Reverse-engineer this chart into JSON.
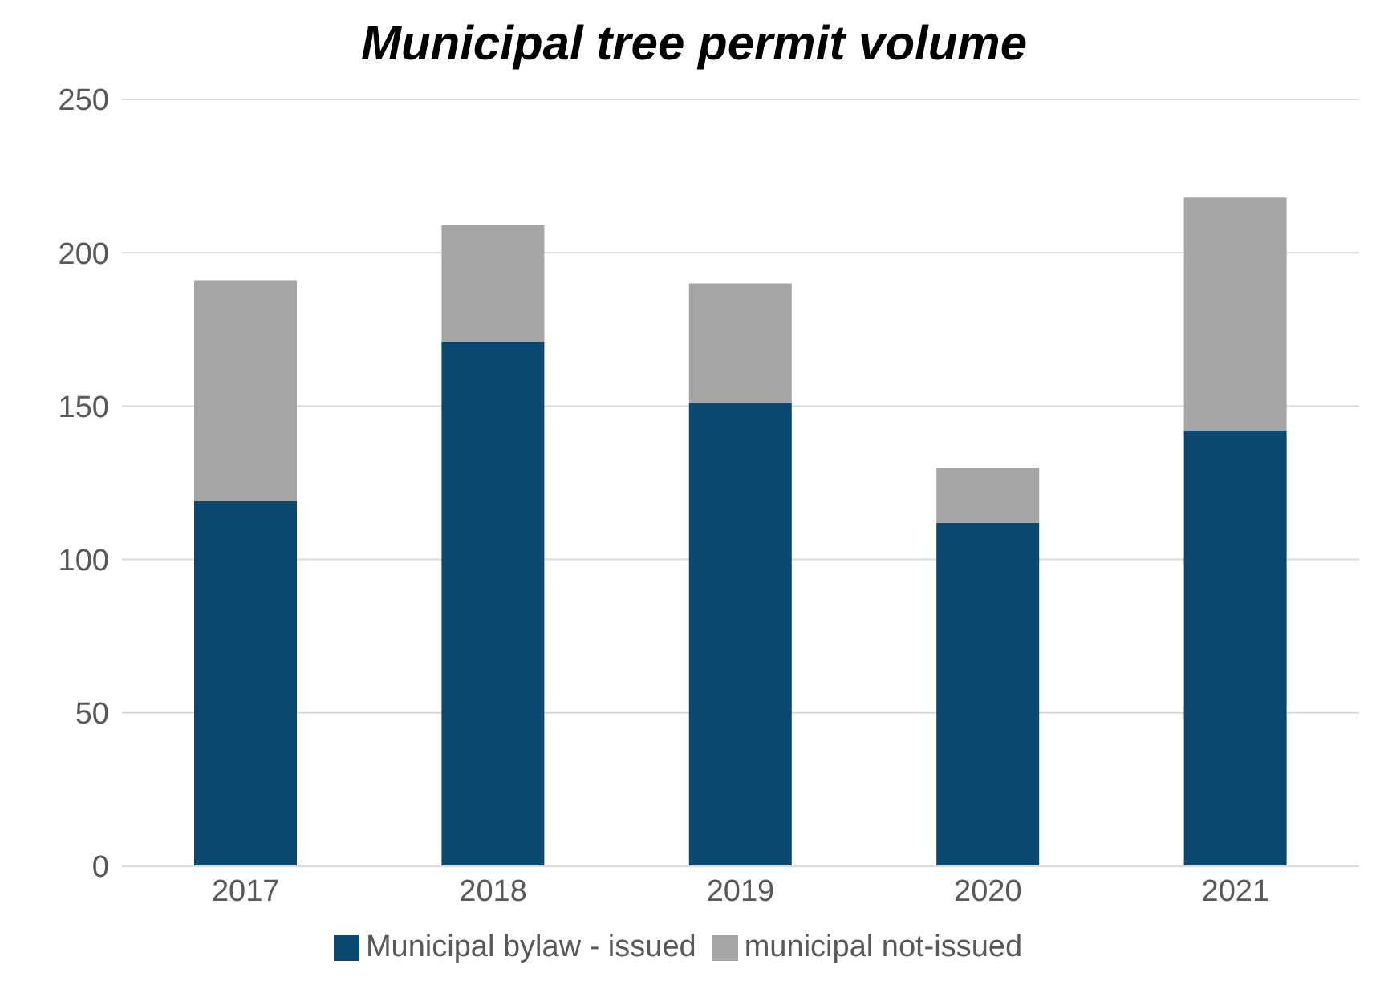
{
  "chart_data": {
    "type": "bar",
    "title": "Municipal tree permit volume",
    "categories": [
      "2017",
      "2018",
      "2019",
      "2020",
      "2021"
    ],
    "stacked": true,
    "series": [
      {
        "name": "Municipal bylaw - issued",
        "color": "#0b4870",
        "values": [
          119,
          171,
          151,
          112,
          142
        ]
      },
      {
        "name": "municipal not-issued",
        "color": "#a5a5a5",
        "values": [
          72,
          38,
          39,
          18,
          76
        ]
      }
    ],
    "ylim": [
      0,
      250
    ],
    "yticks": [
      0,
      50,
      100,
      150,
      200,
      250
    ],
    "grid": "y",
    "legend": "bottom"
  }
}
